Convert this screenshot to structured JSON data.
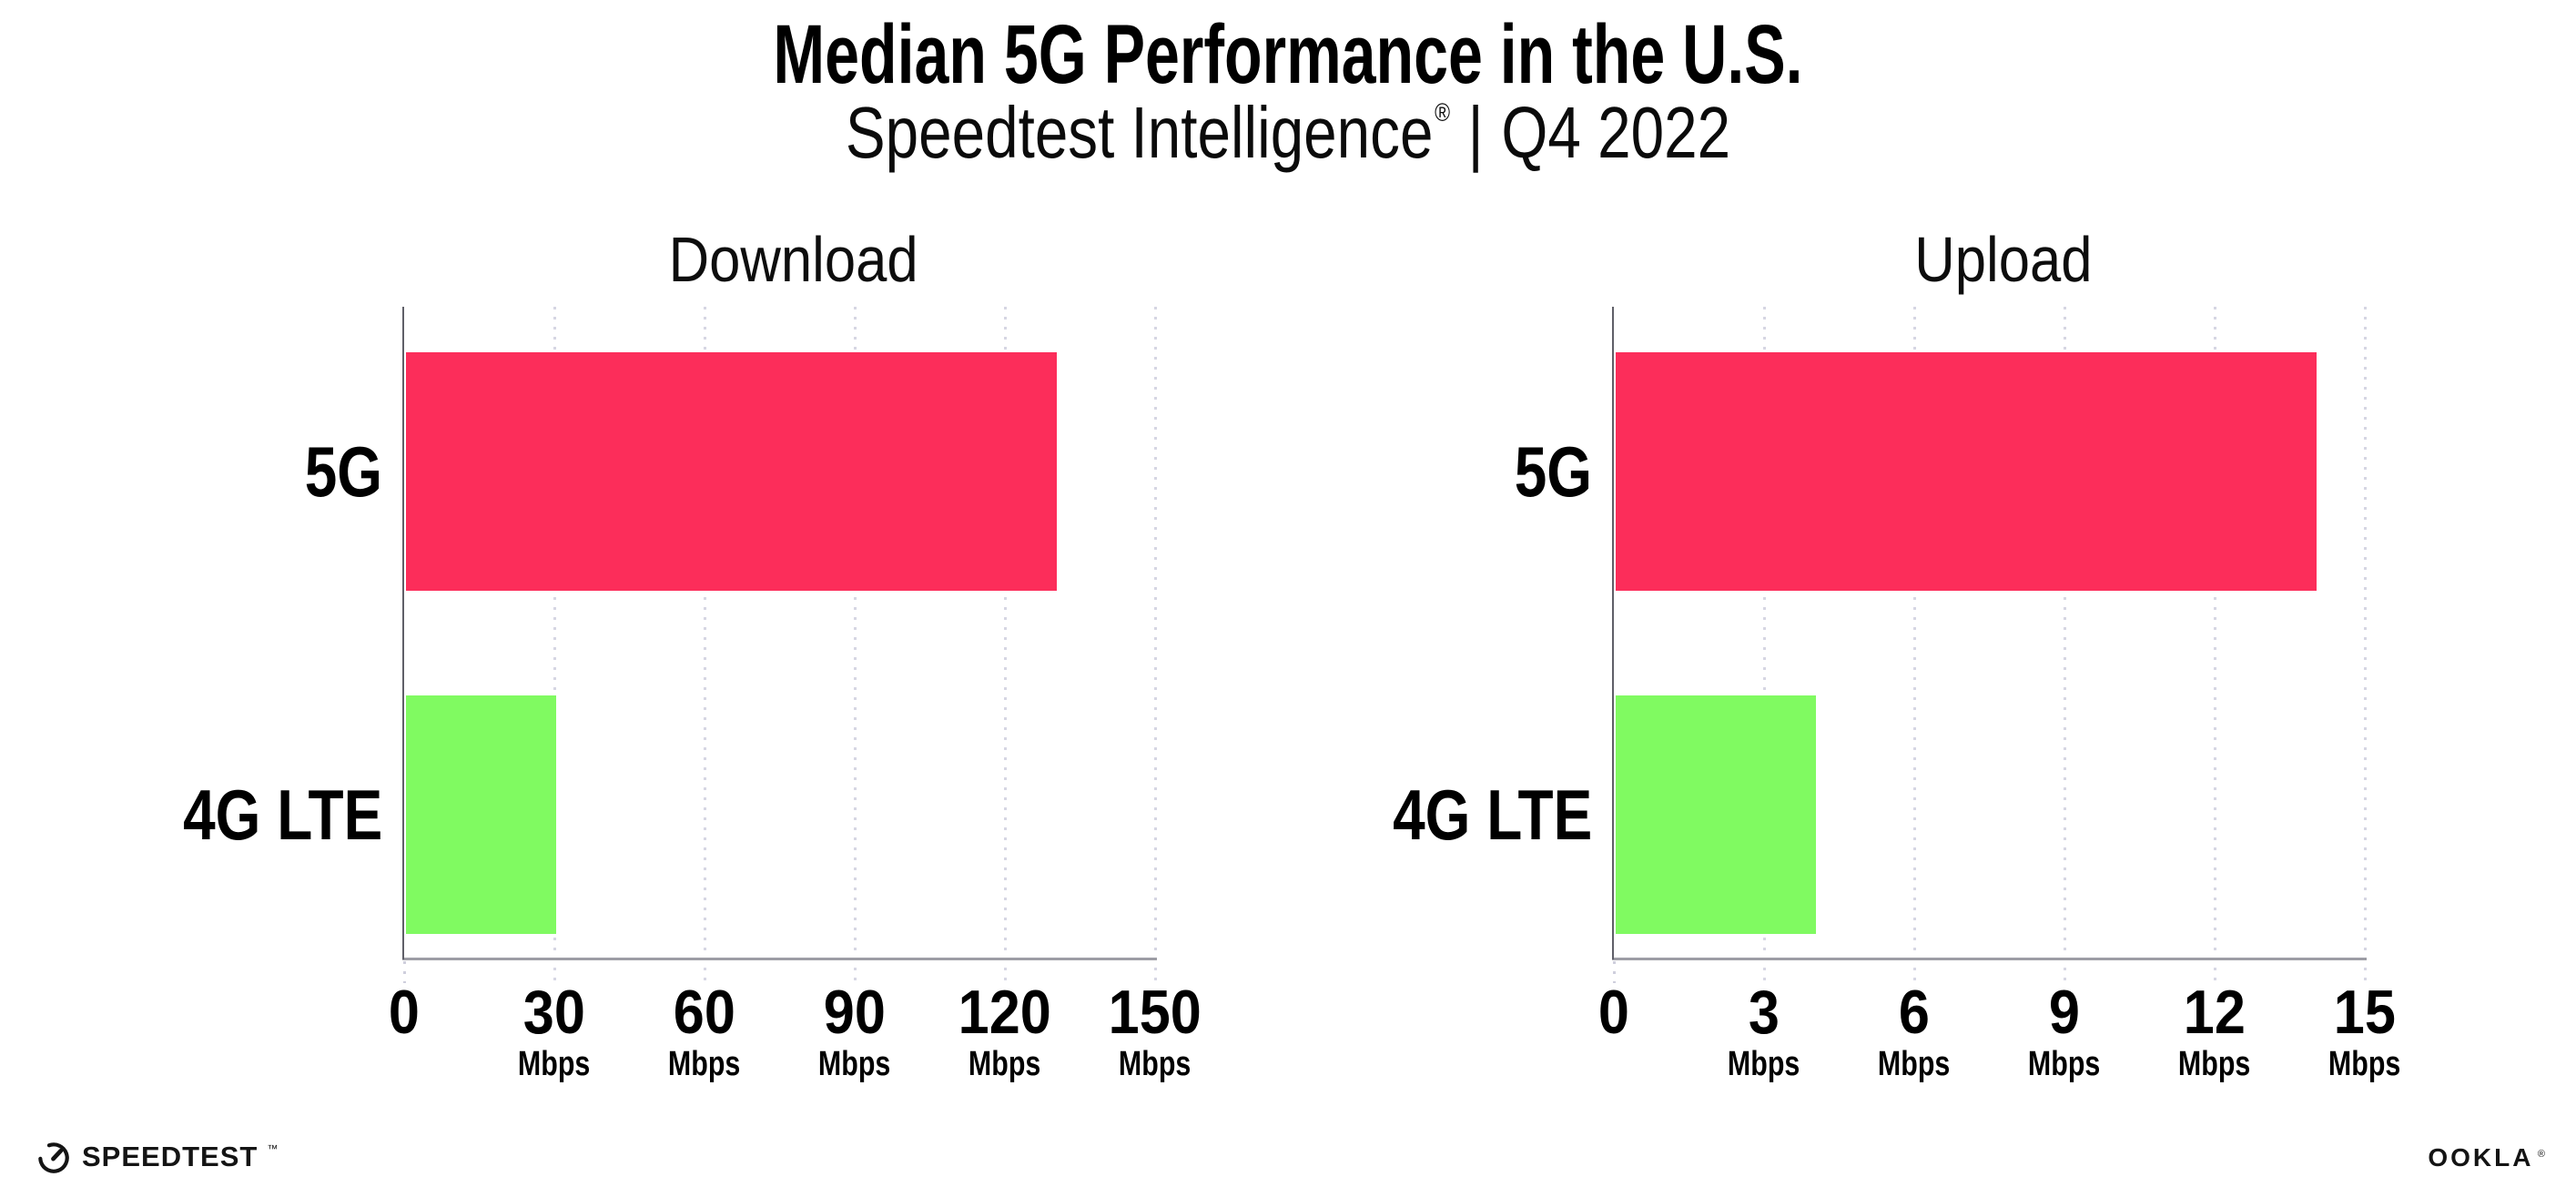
{
  "header": {
    "title": "Median 5G Performance in the U.S.",
    "subtitle_brand": "Speedtest Intelligence",
    "subtitle_reg": "®",
    "subtitle_sep": "|",
    "subtitle_period": "Q4 2022"
  },
  "chart_data": [
    {
      "type": "bar",
      "orientation": "horizontal",
      "title": "Download",
      "categories": [
        "5G",
        "4G LTE"
      ],
      "values": [
        130,
        30
      ],
      "unit": "Mbps",
      "xlabel": "",
      "ylabel": "",
      "xlim": [
        0,
        150
      ],
      "xticks": [
        0,
        30,
        60,
        90,
        120,
        150
      ],
      "bar_colors": [
        "#fc2d5a",
        "#80fa61"
      ],
      "grid": "dotted-vertical-gridlines",
      "legend": "none"
    },
    {
      "type": "bar",
      "orientation": "horizontal",
      "title": "Upload",
      "categories": [
        "5G",
        "4G LTE"
      ],
      "values": [
        14,
        4
      ],
      "unit": "Mbps",
      "xlabel": "",
      "ylabel": "",
      "xlim": [
        0,
        15
      ],
      "xticks": [
        0,
        3,
        6,
        9,
        12,
        15
      ],
      "bar_colors": [
        "#fc2d5a",
        "#80fa61"
      ],
      "grid": "dotted-vertical-gridlines",
      "legend": "none"
    }
  ],
  "colors": {
    "bar_5g": "#fc2d5a",
    "bar_4g_lte": "#80fa61",
    "gridline": "#d6d6e3",
    "axis_bottom": "#9d9da5",
    "axis_left": "#5f5f68"
  },
  "footer": {
    "speedtest_label": "SPEEDTEST",
    "speedtest_tm": "™",
    "ookla_label": "OOKLA",
    "ookla_reg": "®"
  }
}
